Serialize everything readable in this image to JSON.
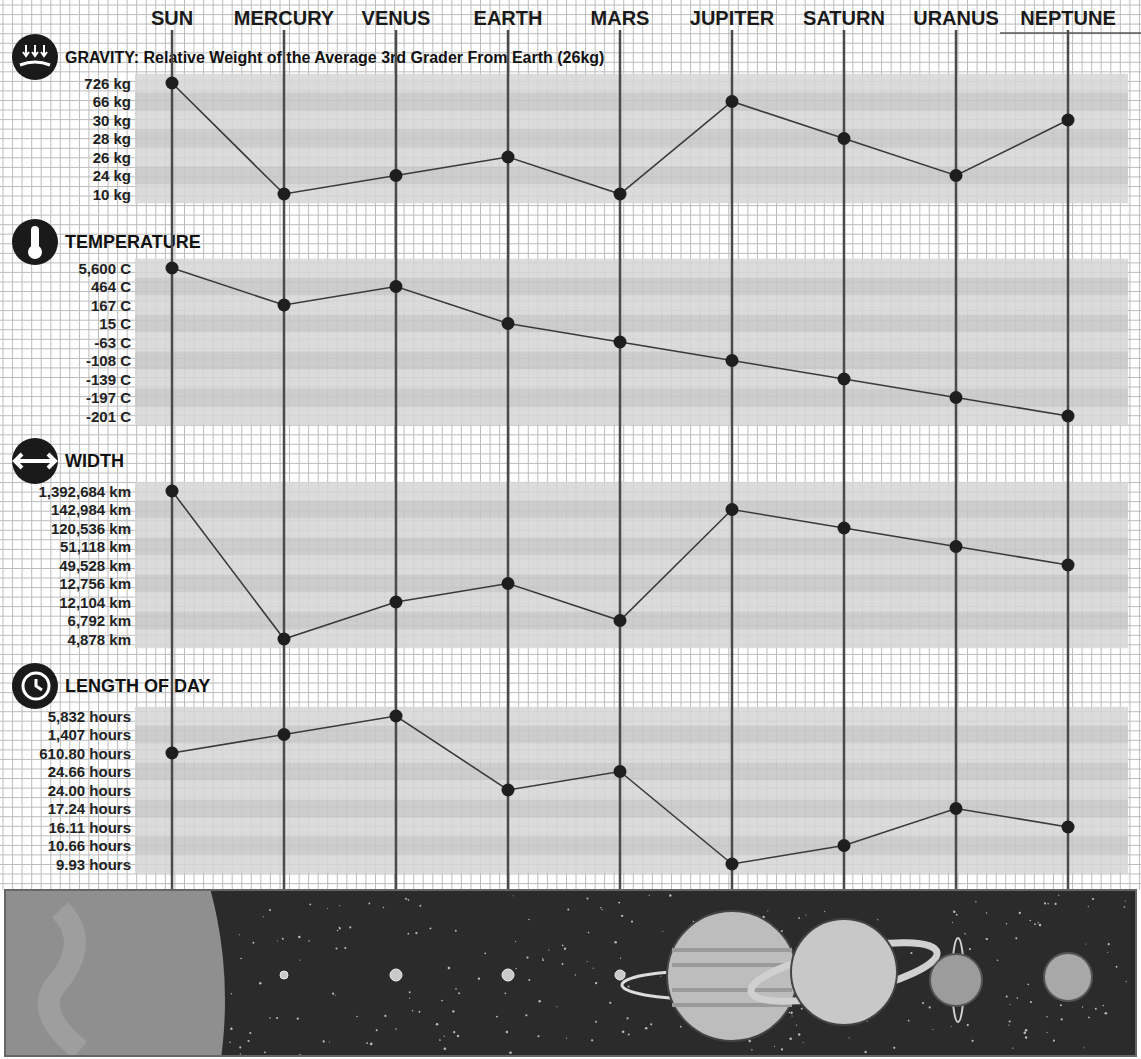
{
  "chart_data": [
    {
      "type": "line",
      "title": "GRAVITY: Relative Weight of the Average 3rd Grader From Earth (26kg)",
      "categories": [
        "SUN",
        "MERCURY",
        "VENUS",
        "EARTH",
        "MARS",
        "JUPITER",
        "SATURN",
        "URANUS",
        "NEPTUNE"
      ],
      "values": [
        726,
        10,
        24,
        26,
        10,
        66,
        28,
        24,
        30
      ],
      "ylim": [
        10,
        726
      ],
      "yticks": [
        {
          "value": 726,
          "label": "726 kg"
        },
        {
          "value": 66,
          "label": "66 kg"
        },
        {
          "value": 30,
          "label": "30 kg"
        },
        {
          "value": 28,
          "label": "28 kg"
        },
        {
          "value": 26,
          "label": "26 kg"
        },
        {
          "value": 24,
          "label": "24 kg"
        },
        {
          "value": 10,
          "label": "10 kg"
        }
      ],
      "color": "#3a3a3a",
      "marker": "circle",
      "grid": true
    },
    {
      "type": "line",
      "title": "TEMPERATURE",
      "values": [
        5600,
        167,
        464,
        15,
        -63,
        -108,
        -139,
        -197,
        -201
      ],
      "ylim": [
        -201,
        5600
      ],
      "yticks": [
        {
          "value": 5600,
          "label": "5,600 C"
        },
        {
          "value": 464,
          "label": "464 C"
        },
        {
          "value": 167,
          "label": "167 C"
        },
        {
          "value": 15,
          "label": "15 C"
        },
        {
          "value": -63,
          "label": "-63 C"
        },
        {
          "value": -108,
          "label": "-108 C"
        },
        {
          "value": -139,
          "label": "-139 C"
        },
        {
          "value": -197,
          "label": "-197 C"
        },
        {
          "value": -201,
          "label": "-201 C"
        }
      ],
      "color": "#3a3a3a",
      "marker": "circle",
      "grid": true
    },
    {
      "type": "line",
      "title": "WIDTH",
      "values": [
        1392684,
        4878,
        12104,
        12756,
        6792,
        142984,
        120536,
        51118,
        49528
      ],
      "ylim": [
        4878,
        1392684
      ],
      "yticks": [
        {
          "value": 1392684,
          "label": "1,392,684 km"
        },
        {
          "value": 142984,
          "label": "142,984 km"
        },
        {
          "value": 120536,
          "label": "120,536 km"
        },
        {
          "value": 51118,
          "label": "51,118 km"
        },
        {
          "value": 49528,
          "label": "49,528 km"
        },
        {
          "value": 12756,
          "label": "12,756 km"
        },
        {
          "value": 12104,
          "label": "12,104 km"
        },
        {
          "value": 6792,
          "label": "6,792 km"
        },
        {
          "value": 4878,
          "label": "4,878 km"
        }
      ],
      "color": "#3a3a3a",
      "marker": "circle",
      "grid": true
    },
    {
      "type": "line",
      "title": "LENGTH OF DAY",
      "values": [
        610.8,
        1407,
        5832,
        24,
        24.66,
        9.93,
        10.66,
        17.24,
        16.11
      ],
      "ylim": [
        9.93,
        5832
      ],
      "yticks": [
        {
          "value": 5832,
          "label": "5,832 hours"
        },
        {
          "value": 1407,
          "label": "1,407 hours"
        },
        {
          "value": 610.8,
          "label": "610.80 hours"
        },
        {
          "value": 24.66,
          "label": "24.66 hours"
        },
        {
          "value": 24,
          "label": "24.00 hours"
        },
        {
          "value": 17.24,
          "label": "17.24 hours"
        },
        {
          "value": 16.11,
          "label": "16.11 hours"
        },
        {
          "value": 10.66,
          "label": "10.66 hours"
        },
        {
          "value": 9.93,
          "label": "9.93 hours"
        }
      ],
      "color": "#3a3a3a",
      "marker": "circle",
      "grid": true
    }
  ]
}
